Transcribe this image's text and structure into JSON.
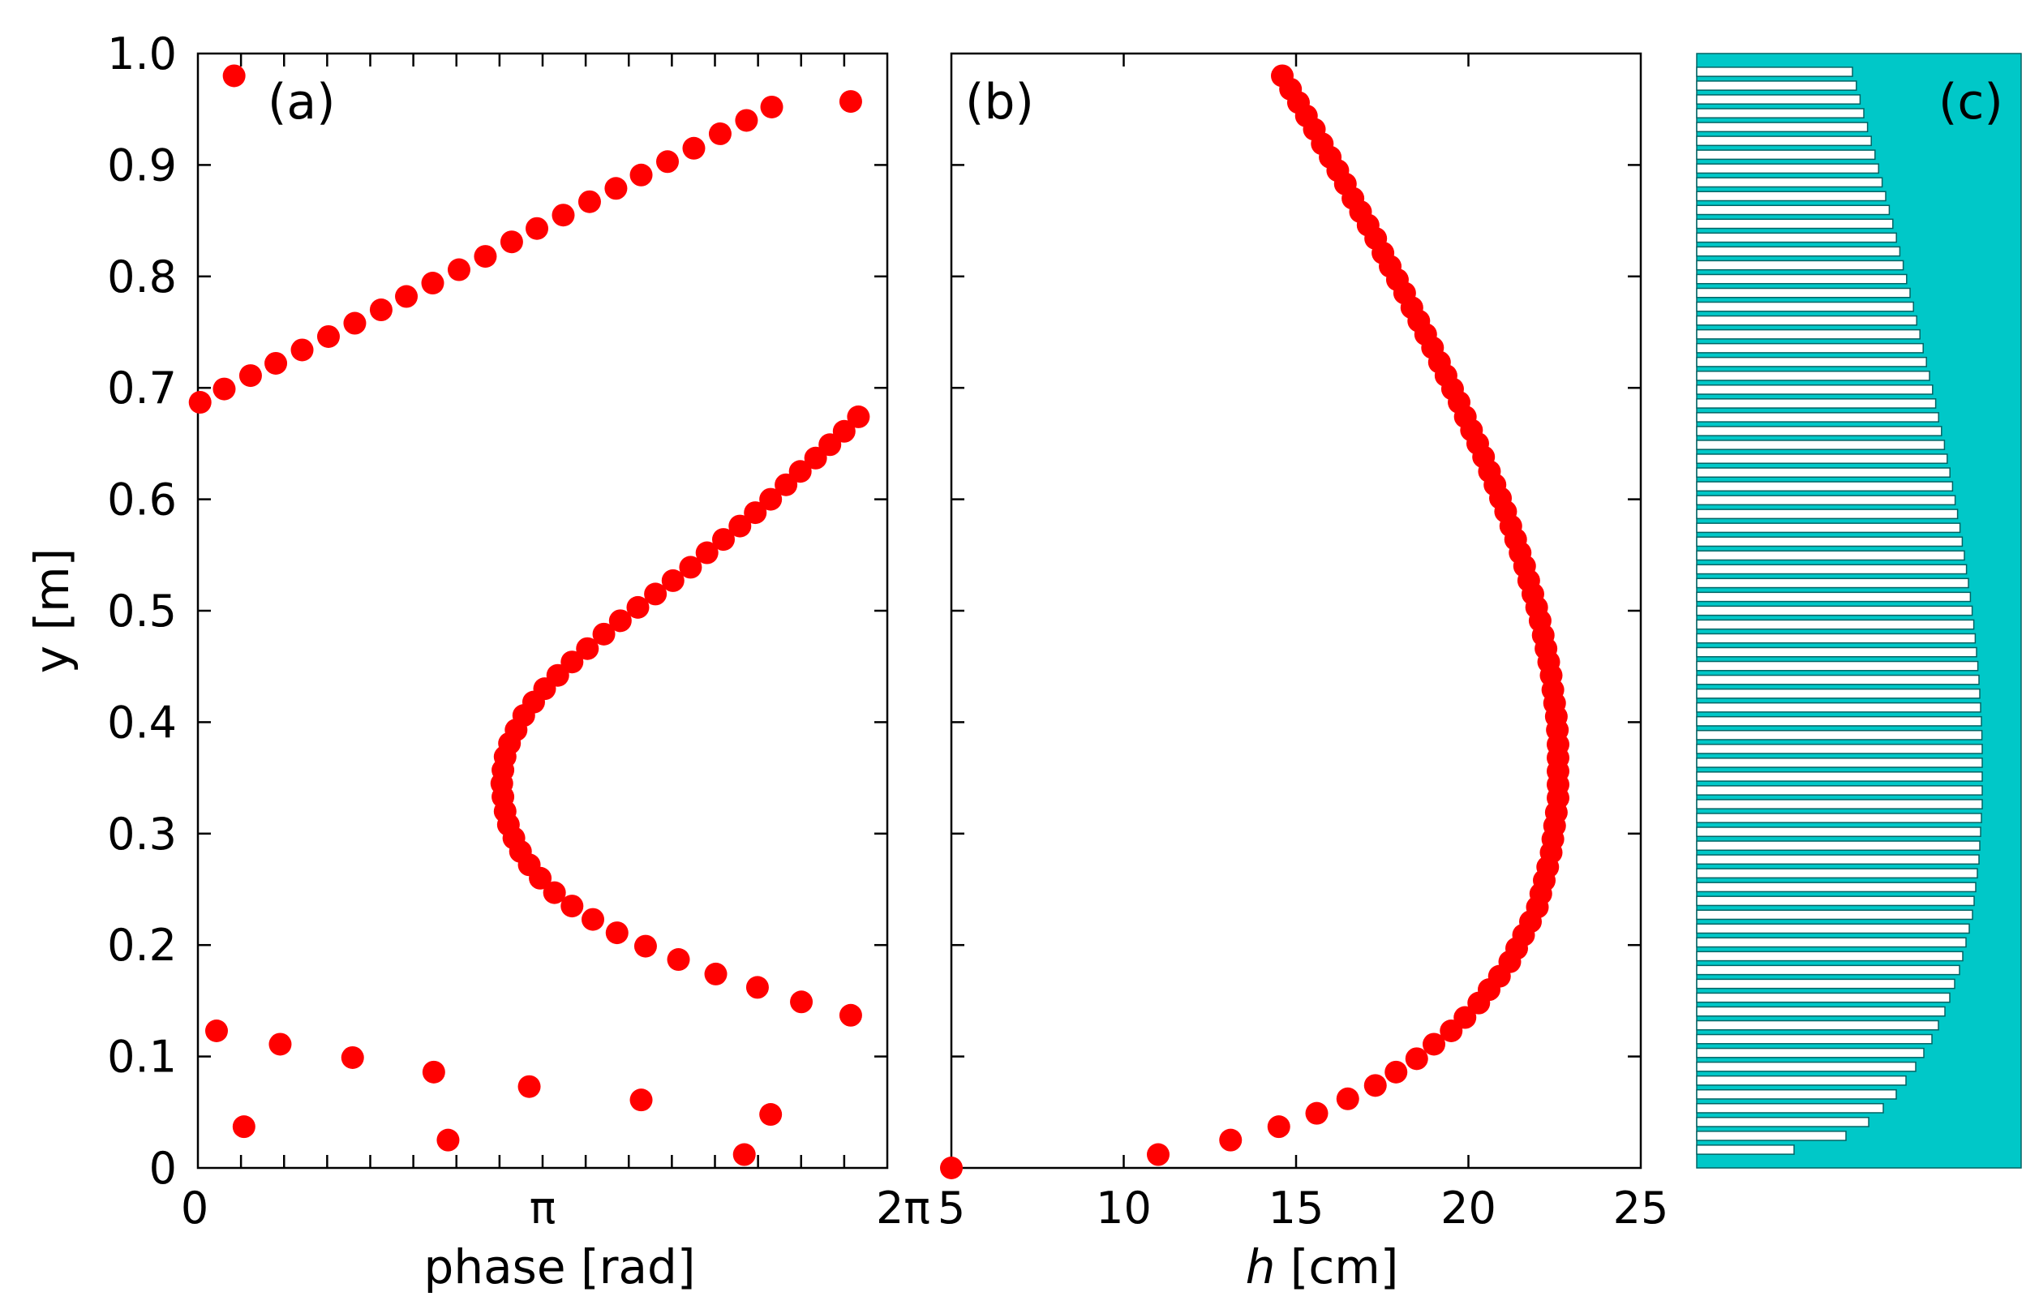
{
  "chart_data": [
    {
      "id": "panel-a",
      "type": "scatter",
      "panel_label": "(a)",
      "xlabel": "phase [rad]",
      "ylabel": "y [m]",
      "xlim": [
        0,
        6.2832
      ],
      "ylim": [
        0,
        1.0
      ],
      "xticks": [
        0,
        3.1416,
        6.2832
      ],
      "xticklabels": [
        "0",
        "π",
        "2π"
      ],
      "yticks": [
        0,
        0.1,
        0.2,
        0.3,
        0.4,
        0.5,
        0.6,
        0.7,
        0.8,
        0.9,
        1.0
      ],
      "yticklabels": [
        "0",
        "0.1",
        "0.2",
        "0.3",
        "0.4",
        "0.5",
        "0.6",
        "0.7",
        "0.8",
        "0.9",
        "1.0"
      ],
      "marker_color": "#ff0000",
      "points": [
        [
          0.33,
          0.98
        ],
        [
          0.02,
          0.687
        ],
        [
          0.24,
          0.699
        ],
        [
          0.48,
          0.711
        ],
        [
          0.71,
          0.722
        ],
        [
          0.95,
          0.734
        ],
        [
          1.19,
          0.746
        ],
        [
          1.43,
          0.758
        ],
        [
          1.67,
          0.77
        ],
        [
          1.9,
          0.782
        ],
        [
          2.14,
          0.794
        ],
        [
          2.38,
          0.806
        ],
        [
          2.62,
          0.818
        ],
        [
          2.86,
          0.831
        ],
        [
          3.09,
          0.843
        ],
        [
          3.33,
          0.855
        ],
        [
          3.57,
          0.867
        ],
        [
          3.81,
          0.879
        ],
        [
          4.04,
          0.891
        ],
        [
          4.28,
          0.903
        ],
        [
          4.52,
          0.915
        ],
        [
          4.76,
          0.928
        ],
        [
          5.0,
          0.94
        ],
        [
          5.23,
          0.952
        ],
        [
          5.95,
          0.957
        ],
        [
          6.02,
          0.674
        ],
        [
          5.89,
          0.661
        ],
        [
          5.76,
          0.649
        ],
        [
          5.63,
          0.637
        ],
        [
          5.49,
          0.625
        ],
        [
          5.36,
          0.613
        ],
        [
          5.22,
          0.6
        ],
        [
          5.08,
          0.588
        ],
        [
          4.94,
          0.576
        ],
        [
          4.79,
          0.564
        ],
        [
          4.64,
          0.552
        ],
        [
          4.49,
          0.539
        ],
        [
          4.33,
          0.527
        ],
        [
          4.17,
          0.515
        ],
        [
          4.01,
          0.503
        ],
        [
          3.85,
          0.491
        ],
        [
          3.7,
          0.479
        ],
        [
          3.55,
          0.466
        ],
        [
          3.41,
          0.454
        ],
        [
          3.28,
          0.442
        ],
        [
          3.16,
          0.43
        ],
        [
          3.06,
          0.418
        ],
        [
          2.97,
          0.406
        ],
        [
          2.9,
          0.393
        ],
        [
          2.84,
          0.381
        ],
        [
          2.8,
          0.369
        ],
        [
          2.78,
          0.357
        ],
        [
          2.77,
          0.345
        ],
        [
          2.78,
          0.333
        ],
        [
          2.8,
          0.32
        ],
        [
          2.83,
          0.308
        ],
        [
          2.88,
          0.296
        ],
        [
          2.94,
          0.284
        ],
        [
          3.02,
          0.272
        ],
        [
          3.12,
          0.26
        ],
        [
          3.25,
          0.247
        ],
        [
          3.41,
          0.235
        ],
        [
          3.6,
          0.223
        ],
        [
          3.82,
          0.211
        ],
        [
          4.08,
          0.199
        ],
        [
          4.38,
          0.187
        ],
        [
          4.72,
          0.174
        ],
        [
          5.1,
          0.162
        ],
        [
          5.5,
          0.149
        ],
        [
          5.95,
          0.137
        ],
        [
          0.17,
          0.123
        ],
        [
          0.75,
          0.111
        ],
        [
          1.41,
          0.099
        ],
        [
          2.15,
          0.086
        ],
        [
          3.02,
          0.073
        ],
        [
          4.04,
          0.061
        ],
        [
          5.22,
          0.048
        ],
        [
          0.42,
          0.037
        ],
        [
          2.28,
          0.025
        ],
        [
          4.98,
          0.012
        ]
      ]
    },
    {
      "id": "panel-b",
      "type": "scatter",
      "panel_label": "(b)",
      "xlabel_italic": "h",
      "xlabel_rest": " [cm]",
      "xlim": [
        5,
        25
      ],
      "ylim": [
        0,
        1.0
      ],
      "xticks": [
        5,
        10,
        15,
        20,
        25
      ],
      "xticklabels": [
        "5",
        "10",
        "15",
        "20",
        "25"
      ],
      "yticks": [
        0,
        0.1,
        0.2,
        0.3,
        0.4,
        0.5,
        0.6,
        0.7,
        0.8,
        0.9,
        1.0
      ],
      "marker_color": "#ff0000",
      "points": [
        [
          5.0,
          0.0
        ],
        [
          11.0,
          0.012
        ],
        [
          13.1,
          0.025
        ],
        [
          14.5,
          0.037
        ],
        [
          15.6,
          0.049
        ],
        [
          16.5,
          0.062
        ],
        [
          17.3,
          0.074
        ],
        [
          17.9,
          0.086
        ],
        [
          18.5,
          0.098
        ],
        [
          19.0,
          0.111
        ],
        [
          19.5,
          0.123
        ],
        [
          19.9,
          0.135
        ],
        [
          20.3,
          0.148
        ],
        [
          20.6,
          0.16
        ],
        [
          20.9,
          0.172
        ],
        [
          21.2,
          0.185
        ],
        [
          21.4,
          0.197
        ],
        [
          21.6,
          0.209
        ],
        [
          21.8,
          0.221
        ],
        [
          22.0,
          0.234
        ],
        [
          22.1,
          0.246
        ],
        [
          22.2,
          0.258
        ],
        [
          22.3,
          0.27
        ],
        [
          22.4,
          0.283
        ],
        [
          22.45,
          0.295
        ],
        [
          22.5,
          0.307
        ],
        [
          22.55,
          0.319
        ],
        [
          22.6,
          0.332
        ],
        [
          22.6,
          0.344
        ],
        [
          22.6,
          0.356
        ],
        [
          22.6,
          0.368
        ],
        [
          22.6,
          0.38
        ],
        [
          22.58,
          0.393
        ],
        [
          22.55,
          0.405
        ],
        [
          22.5,
          0.417
        ],
        [
          22.45,
          0.429
        ],
        [
          22.4,
          0.442
        ],
        [
          22.33,
          0.454
        ],
        [
          22.25,
          0.466
        ],
        [
          22.17,
          0.478
        ],
        [
          22.08,
          0.491
        ],
        [
          21.98,
          0.503
        ],
        [
          21.87,
          0.515
        ],
        [
          21.75,
          0.527
        ],
        [
          21.63,
          0.54
        ],
        [
          21.5,
          0.552
        ],
        [
          21.37,
          0.564
        ],
        [
          21.23,
          0.576
        ],
        [
          21.08,
          0.589
        ],
        [
          20.93,
          0.601
        ],
        [
          20.77,
          0.613
        ],
        [
          20.61,
          0.625
        ],
        [
          20.44,
          0.638
        ],
        [
          20.27,
          0.65
        ],
        [
          20.09,
          0.662
        ],
        [
          19.91,
          0.674
        ],
        [
          19.73,
          0.687
        ],
        [
          19.54,
          0.699
        ],
        [
          19.35,
          0.711
        ],
        [
          19.16,
          0.723
        ],
        [
          18.96,
          0.736
        ],
        [
          18.76,
          0.748
        ],
        [
          18.56,
          0.76
        ],
        [
          18.36,
          0.772
        ],
        [
          18.15,
          0.785
        ],
        [
          17.94,
          0.797
        ],
        [
          17.73,
          0.809
        ],
        [
          17.52,
          0.821
        ],
        [
          17.31,
          0.834
        ],
        [
          17.09,
          0.846
        ],
        [
          16.87,
          0.858
        ],
        [
          16.65,
          0.87
        ],
        [
          16.43,
          0.883
        ],
        [
          16.21,
          0.895
        ],
        [
          15.99,
          0.907
        ],
        [
          15.76,
          0.919
        ],
        [
          15.53,
          0.932
        ],
        [
          15.3,
          0.944
        ],
        [
          15.07,
          0.956
        ],
        [
          14.84,
          0.968
        ],
        [
          14.6,
          0.98
        ]
      ]
    },
    {
      "id": "panel-c",
      "type": "bar",
      "orientation": "horizontal",
      "panel_label": "(c)",
      "fill_color": "#00c8c8",
      "bar_fill": "#ffffff",
      "bar_edge": "#006464",
      "values_cm": [
        11.0,
        14.2,
        15.6,
        16.5,
        17.3,
        17.9,
        18.5,
        19.0,
        19.5,
        19.9,
        20.3,
        20.6,
        20.9,
        21.2,
        21.4,
        21.6,
        21.8,
        22.0,
        22.1,
        22.2,
        22.3,
        22.4,
        22.45,
        22.5,
        22.55,
        22.6,
        22.6,
        22.6,
        22.6,
        22.6,
        22.58,
        22.55,
        22.5,
        22.45,
        22.4,
        22.33,
        22.25,
        22.17,
        22.08,
        21.98,
        21.87,
        21.75,
        21.63,
        21.5,
        21.37,
        21.23,
        21.08,
        20.93,
        20.77,
        20.61,
        20.44,
        20.27,
        20.09,
        19.91,
        19.73,
        19.54,
        19.35,
        19.16,
        18.96,
        18.76,
        18.56,
        18.36,
        18.15,
        17.94,
        17.73,
        17.52,
        17.31,
        17.09,
        16.87,
        16.65,
        16.43,
        16.21,
        15.99,
        15.76,
        15.53,
        15.3,
        15.07,
        14.84,
        14.6
      ]
    }
  ]
}
